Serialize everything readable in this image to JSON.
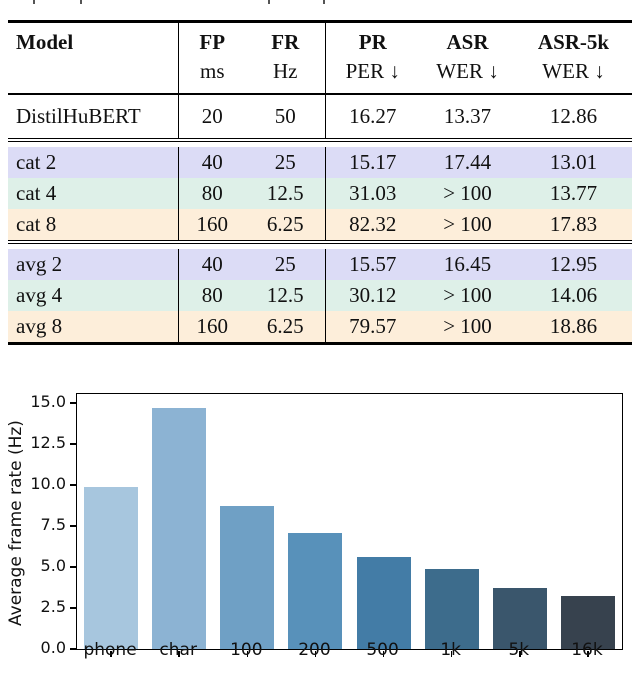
{
  "table": {
    "col_headers": [
      {
        "line1": "Model",
        "line2": ""
      },
      {
        "line1": "FP",
        "line2": "ms"
      },
      {
        "line1": "FR",
        "line2": "Hz"
      },
      {
        "line1": "PR",
        "line2": "PER ↓"
      },
      {
        "line1": "ASR",
        "line2": "WER ↓"
      },
      {
        "line1": "ASR-5k",
        "line2": "WER ↓"
      }
    ],
    "row_band_colors": {
      "lavender": "#dcdcf6",
      "mint": "#def0e8",
      "peach": "#fdeeda",
      "plain": "#ffffff"
    },
    "groups": [
      {
        "rows": [
          {
            "cells": [
              "DistilHuBERT",
              "20",
              "50",
              "16.27",
              "13.37",
              "12.86"
            ],
            "bg": "#ffffff"
          }
        ]
      },
      {
        "rows": [
          {
            "cells": [
              "cat 2",
              "40",
              "25",
              "15.17",
              "17.44",
              "13.01"
            ],
            "bg": "#dcdcf6"
          },
          {
            "cells": [
              "cat 4",
              "80",
              "12.5",
              "31.03",
              "> 100",
              "13.77"
            ],
            "bg": "#def0e8"
          },
          {
            "cells": [
              "cat 8",
              "160",
              "6.25",
              "82.32",
              "> 100",
              "17.83"
            ],
            "bg": "#fdeeda"
          }
        ]
      },
      {
        "rows": [
          {
            "cells": [
              "avg 2",
              "40",
              "25",
              "15.57",
              "16.45",
              "12.95"
            ],
            "bg": "#dcdcf6"
          },
          {
            "cells": [
              "avg 4",
              "80",
              "12.5",
              "30.12",
              "> 100",
              "14.06"
            ],
            "bg": "#def0e8"
          },
          {
            "cells": [
              "avg 8",
              "160",
              "6.25",
              "79.57",
              "> 100",
              "18.86"
            ],
            "bg": "#fdeeda"
          }
        ]
      }
    ]
  },
  "chart_data": {
    "type": "bar",
    "title": "",
    "xlabel": "",
    "ylabel": "Average frame rate (Hz)",
    "categories": [
      "phone",
      "char",
      "100",
      "200",
      "500",
      "1k",
      "5k",
      "16k"
    ],
    "values": [
      9.85,
      14.7,
      8.7,
      7.1,
      5.6,
      4.9,
      3.7,
      3.25
    ],
    "bar_colors": [
      "#a7c6de",
      "#8cb3d3",
      "#6fa0c5",
      "#5891ba",
      "#437ca6",
      "#3d6c8c",
      "#3a566c",
      "#37424e"
    ],
    "yticks": [
      "0.0",
      "2.5",
      "5.0",
      "7.5",
      "10.0",
      "12.5",
      "15.0"
    ],
    "ytick_values": [
      0,
      2.5,
      5,
      7.5,
      10,
      12.5,
      15
    ],
    "ylim": [
      0,
      15.55
    ],
    "grid": false,
    "legend": "none",
    "spine_color": "#000000"
  }
}
